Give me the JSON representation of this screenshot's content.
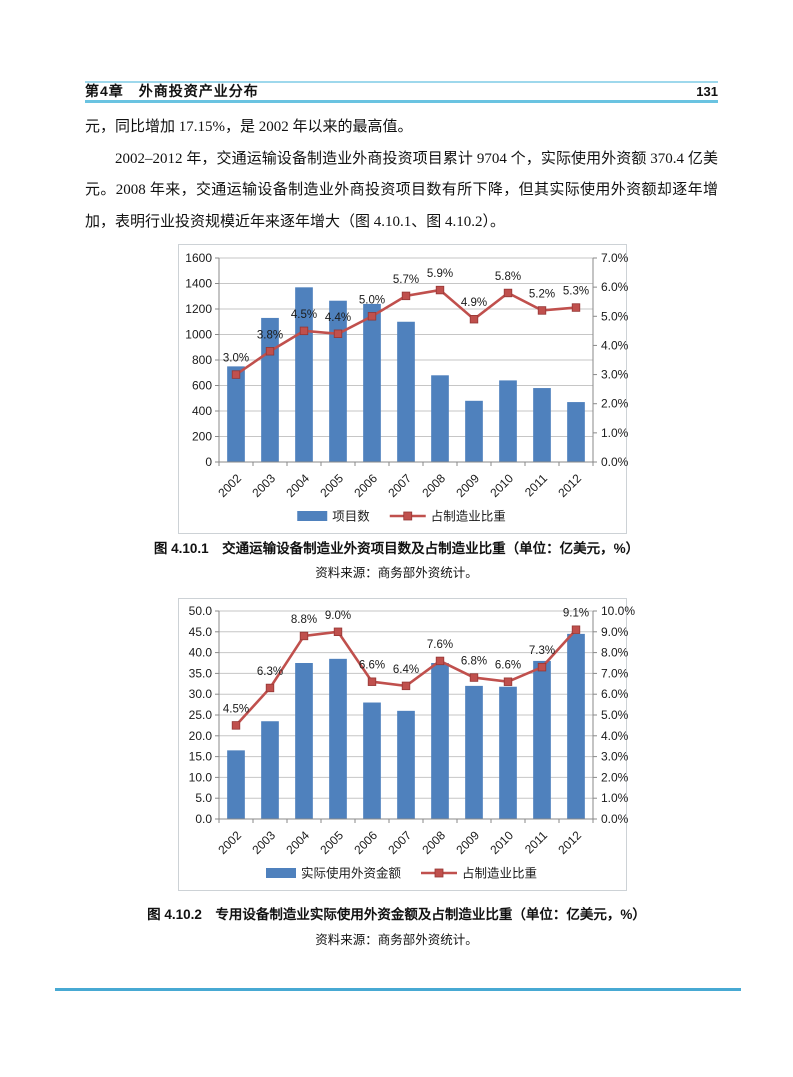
{
  "header": {
    "chapter_title": "第4章　外商投资产业分布",
    "page_number": "131"
  },
  "body": {
    "paragraph1_end": "元，同比增加 17.15%，是 2002 年以来的最高值。",
    "paragraph2": "2002–2012 年，交通运输设备制造业外商投资项目累计 9704 个，实际使用外资额 370.4 亿美元。2008 年来，交通运输设备制造业外商投资项目数有所下降，但其实际使用外资额却逐年增加，表明行业投资规模近年来逐年增大（图 4.10.1、图 4.10.2）。"
  },
  "figures": [
    {
      "caption": "图 4.10.1　交通运输设备制造业外资项目数及占制造业比重（单位：亿美元，%）",
      "source": "资料来源：商务部外资统计。"
    },
    {
      "caption": "图 4.10.2　专用设备制造业实际使用外资金额及占制造业比重（单位：亿美元，%）",
      "source": "资料来源：商务部外资统计。"
    }
  ],
  "colors": {
    "bar": "#4F81BD",
    "line": "#C0504D",
    "marker_border": "#943634",
    "grid": "#C6C6C6",
    "axis": "#898989",
    "text": "#1A1A1A",
    "header_rule_top": "#9ED8EC",
    "header_rule_bottom": "#6AC3E1",
    "divider": "#47A9D3"
  },
  "chart_data": [
    {
      "type": "bar+line",
      "title": "",
      "categories": [
        "2002",
        "2003",
        "2004",
        "2005",
        "2006",
        "2007",
        "2008",
        "2009",
        "2010",
        "2011",
        "2012"
      ],
      "series": [
        {
          "name": "项目数",
          "kind": "bar",
          "axis": "left",
          "values": [
            750,
            1130,
            1370,
            1265,
            1240,
            1100,
            680,
            480,
            640,
            580,
            470
          ]
        },
        {
          "name": "占制造业比重",
          "kind": "line",
          "axis": "right",
          "values": [
            3.0,
            3.8,
            4.5,
            4.4,
            5.0,
            5.7,
            5.9,
            4.9,
            5.8,
            5.2,
            5.3
          ],
          "point_labels": [
            "3.0%",
            "3.8%",
            "4.5%",
            "4.4%",
            "5.0%",
            "5.7%",
            "5.9%",
            "4.9%",
            "5.8%",
            "5.2%",
            "5.3%"
          ]
        }
      ],
      "left_axis": {
        "min": 0,
        "max": 1600,
        "step": 200,
        "ticks": [
          "0",
          "200",
          "400",
          "600",
          "800",
          "1000",
          "1200",
          "1400",
          "1600"
        ]
      },
      "right_axis": {
        "min": 0,
        "max": 7,
        "step": 1,
        "suffix": "%",
        "ticks": [
          "0.0%",
          "1.0%",
          "2.0%",
          "3.0%",
          "4.0%",
          "5.0%",
          "6.0%",
          "7.0%"
        ]
      },
      "grid": true,
      "legend_position": "bottom"
    },
    {
      "type": "bar+line",
      "title": "",
      "categories": [
        "2002",
        "2003",
        "2004",
        "2005",
        "2006",
        "2007",
        "2008",
        "2009",
        "2010",
        "2011",
        "2012"
      ],
      "series": [
        {
          "name": "实际使用外资金额",
          "kind": "bar",
          "axis": "left",
          "values": [
            16.5,
            23.5,
            37.5,
            38.5,
            28.0,
            26.0,
            37.5,
            32.0,
            31.8,
            38.0,
            44.5
          ]
        },
        {
          "name": "占制造业比重",
          "kind": "line",
          "axis": "right",
          "values": [
            4.5,
            6.3,
            8.8,
            9.0,
            6.6,
            6.4,
            7.6,
            6.8,
            6.6,
            7.3,
            9.1
          ],
          "point_labels": [
            "4.5%",
            "6.3%",
            "8.8%",
            "9.0%",
            "6.6%",
            "6.4%",
            "7.6%",
            "6.8%",
            "6.6%",
            "7.3%",
            "9.1%"
          ]
        }
      ],
      "left_axis": {
        "min": 0,
        "max": 50,
        "step": 5,
        "ticks": [
          "0.0",
          "5.0",
          "10.0",
          "15.0",
          "20.0",
          "25.0",
          "30.0",
          "35.0",
          "40.0",
          "45.0",
          "50.0"
        ]
      },
      "right_axis": {
        "min": 0,
        "max": 10,
        "step": 1,
        "suffix": "%",
        "ticks": [
          "0.0%",
          "1.0%",
          "2.0%",
          "3.0%",
          "4.0%",
          "5.0%",
          "6.0%",
          "7.0%",
          "8.0%",
          "9.0%",
          "10.0%"
        ]
      },
      "grid": true,
      "legend_position": "bottom"
    }
  ]
}
